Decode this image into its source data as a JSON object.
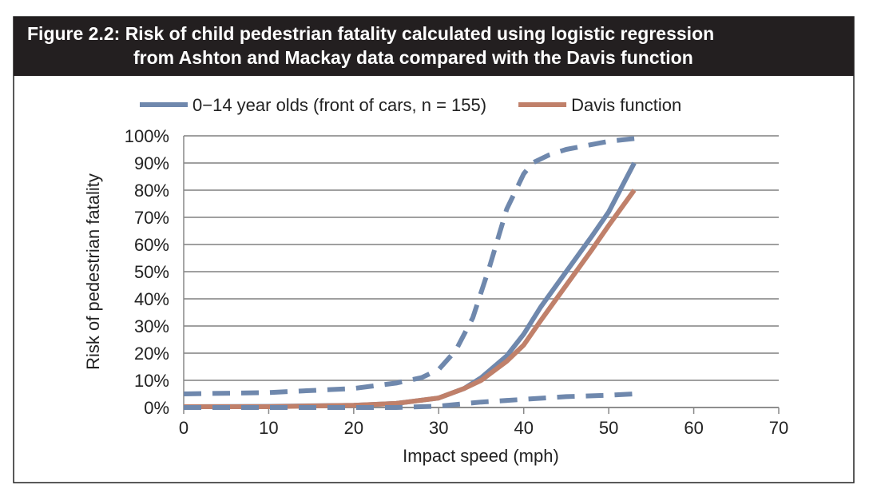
{
  "chart_data": {
    "type": "line",
    "title": "Figure 2.2:  Risk of child pedestrian fatality calculated using logistic regression",
    "subtitle": "from Ashton and Mackay data compared with the Davis function",
    "x_label": "Impact speed (mph)",
    "y_label": "Risk of pedestrian fatality",
    "xlim": [
      0,
      70
    ],
    "xticks": [
      0,
      10,
      20,
      30,
      40,
      50,
      60,
      70
    ],
    "ylim": [
      0,
      100
    ],
    "yticks": [
      {
        "value": 0,
        "label": "0%"
      },
      {
        "value": 10,
        "label": "10%"
      },
      {
        "value": 20,
        "label": "20%"
      },
      {
        "value": 30,
        "label": "30%"
      },
      {
        "value": 40,
        "label": "40%"
      },
      {
        "value": 50,
        "label": "50%"
      },
      {
        "value": 60,
        "label": "60%"
      },
      {
        "value": 70,
        "label": "70%"
      },
      {
        "value": 80,
        "label": "80%"
      },
      {
        "value": 90,
        "label": "90%"
      },
      {
        "value": 100,
        "label": "100%"
      }
    ],
    "grid": true,
    "legend": "top",
    "series": [
      {
        "name": "0−14 year olds (front of cars, n = 155)",
        "color": "#6f88ad",
        "dashed": false,
        "x": [
          0,
          10,
          20,
          25,
          30,
          33,
          35,
          38,
          40,
          42,
          45,
          48,
          50,
          53
        ],
        "values": [
          0.3,
          0.4,
          0.8,
          1.5,
          3.5,
          7,
          11,
          19,
          27,
          37,
          50,
          63,
          72,
          90
        ]
      },
      {
        "name": "Davis function",
        "color": "#c0806a",
        "dashed": false,
        "x": [
          0,
          10,
          20,
          25,
          30,
          33,
          35,
          38,
          40,
          42,
          45,
          48,
          50,
          53
        ],
        "values": [
          0.3,
          0.3,
          0.8,
          1.5,
          3.5,
          7,
          10,
          17,
          23,
          32,
          45,
          58,
          67,
          80
        ]
      },
      {
        "color": "#6f88ad",
        "dashed": true,
        "x": [
          0,
          10,
          20,
          25,
          28,
          30,
          32,
          34,
          36,
          38,
          40,
          41,
          43,
          45,
          50,
          53
        ],
        "values": [
          5,
          5.5,
          7,
          9,
          11,
          14,
          21,
          33,
          52,
          73,
          86,
          90,
          93,
          95,
          98,
          99
        ]
      },
      {
        "color": "#6f88ad",
        "dashed": true,
        "x": [
          0,
          20,
          25,
          30,
          35,
          40,
          45,
          50,
          53
        ],
        "values": [
          0,
          0,
          0,
          0.5,
          2,
          3,
          4,
          4.5,
          5
        ]
      }
    ]
  }
}
